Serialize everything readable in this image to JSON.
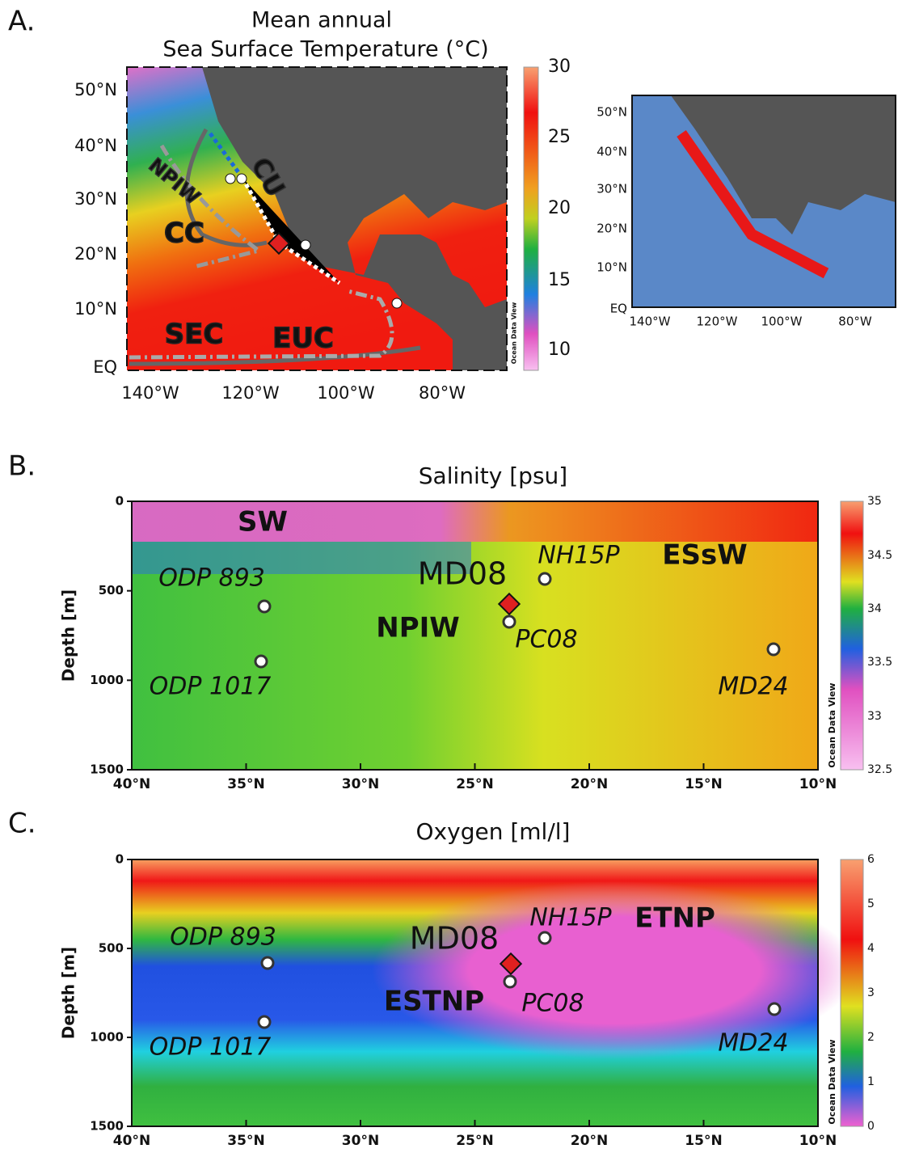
{
  "panel_a": {
    "label": "A.",
    "title_lines": [
      "Mean annual",
      "Sea Surface Temperature (°C)"
    ],
    "y_ticks": [
      "50°N",
      "40°N",
      "30°N",
      "20°N",
      "10°N",
      "EQ"
    ],
    "x_ticks": [
      "140°W",
      "120°W",
      "100°W",
      "80°W"
    ],
    "colorbar_ticks": [
      30,
      25,
      20,
      15,
      10
    ],
    "colorbar_credit": "Ocean Data View",
    "currents": [
      "CU",
      "NPIW",
      "CC",
      "SEC",
      "EUC"
    ]
  },
  "inset": {
    "y_ticks": [
      "50°N",
      "40°N",
      "30°N",
      "20°N",
      "10°N",
      "EQ"
    ],
    "x_ticks": [
      "140°W",
      "120°W",
      "100°W",
      "80°W"
    ]
  },
  "panel_b": {
    "label": "B.",
    "title": "Salinity [psu]",
    "y_axis_label": "Depth [m]",
    "y_ticks": [
      0,
      500,
      1000,
      1500
    ],
    "x_ticks": [
      "40°N",
      "35°N",
      "30°N",
      "25°N",
      "20°N",
      "15°N",
      "10°N"
    ],
    "colorbar_ticks": [
      35,
      34.5,
      34,
      33.5,
      33,
      32.5
    ],
    "colorbar_credit": "Ocean Data View",
    "water_masses": [
      "SW",
      "ESsW",
      "NPIW"
    ],
    "sites": [
      "ODP 893",
      "ODP 1017",
      "MD08",
      "NH15P",
      "PC08",
      "MD24"
    ]
  },
  "panel_c": {
    "label": "C.",
    "title": "Oxygen [ml/l]",
    "y_axis_label": "Depth [m]",
    "y_ticks": [
      0,
      500,
      1000,
      1500
    ],
    "x_ticks": [
      "40°N",
      "35°N",
      "30°N",
      "25°N",
      "20°N",
      "15°N",
      "10°N"
    ],
    "colorbar_ticks": [
      6,
      5,
      4,
      3,
      2,
      1,
      0
    ],
    "colorbar_credit": "Ocean Data View",
    "water_masses": [
      "ETNP",
      "ESTNP"
    ],
    "sites": [
      "ODP 893",
      "ODP 1017",
      "MD08",
      "NH15P",
      "PC08",
      "MD24"
    ]
  }
}
